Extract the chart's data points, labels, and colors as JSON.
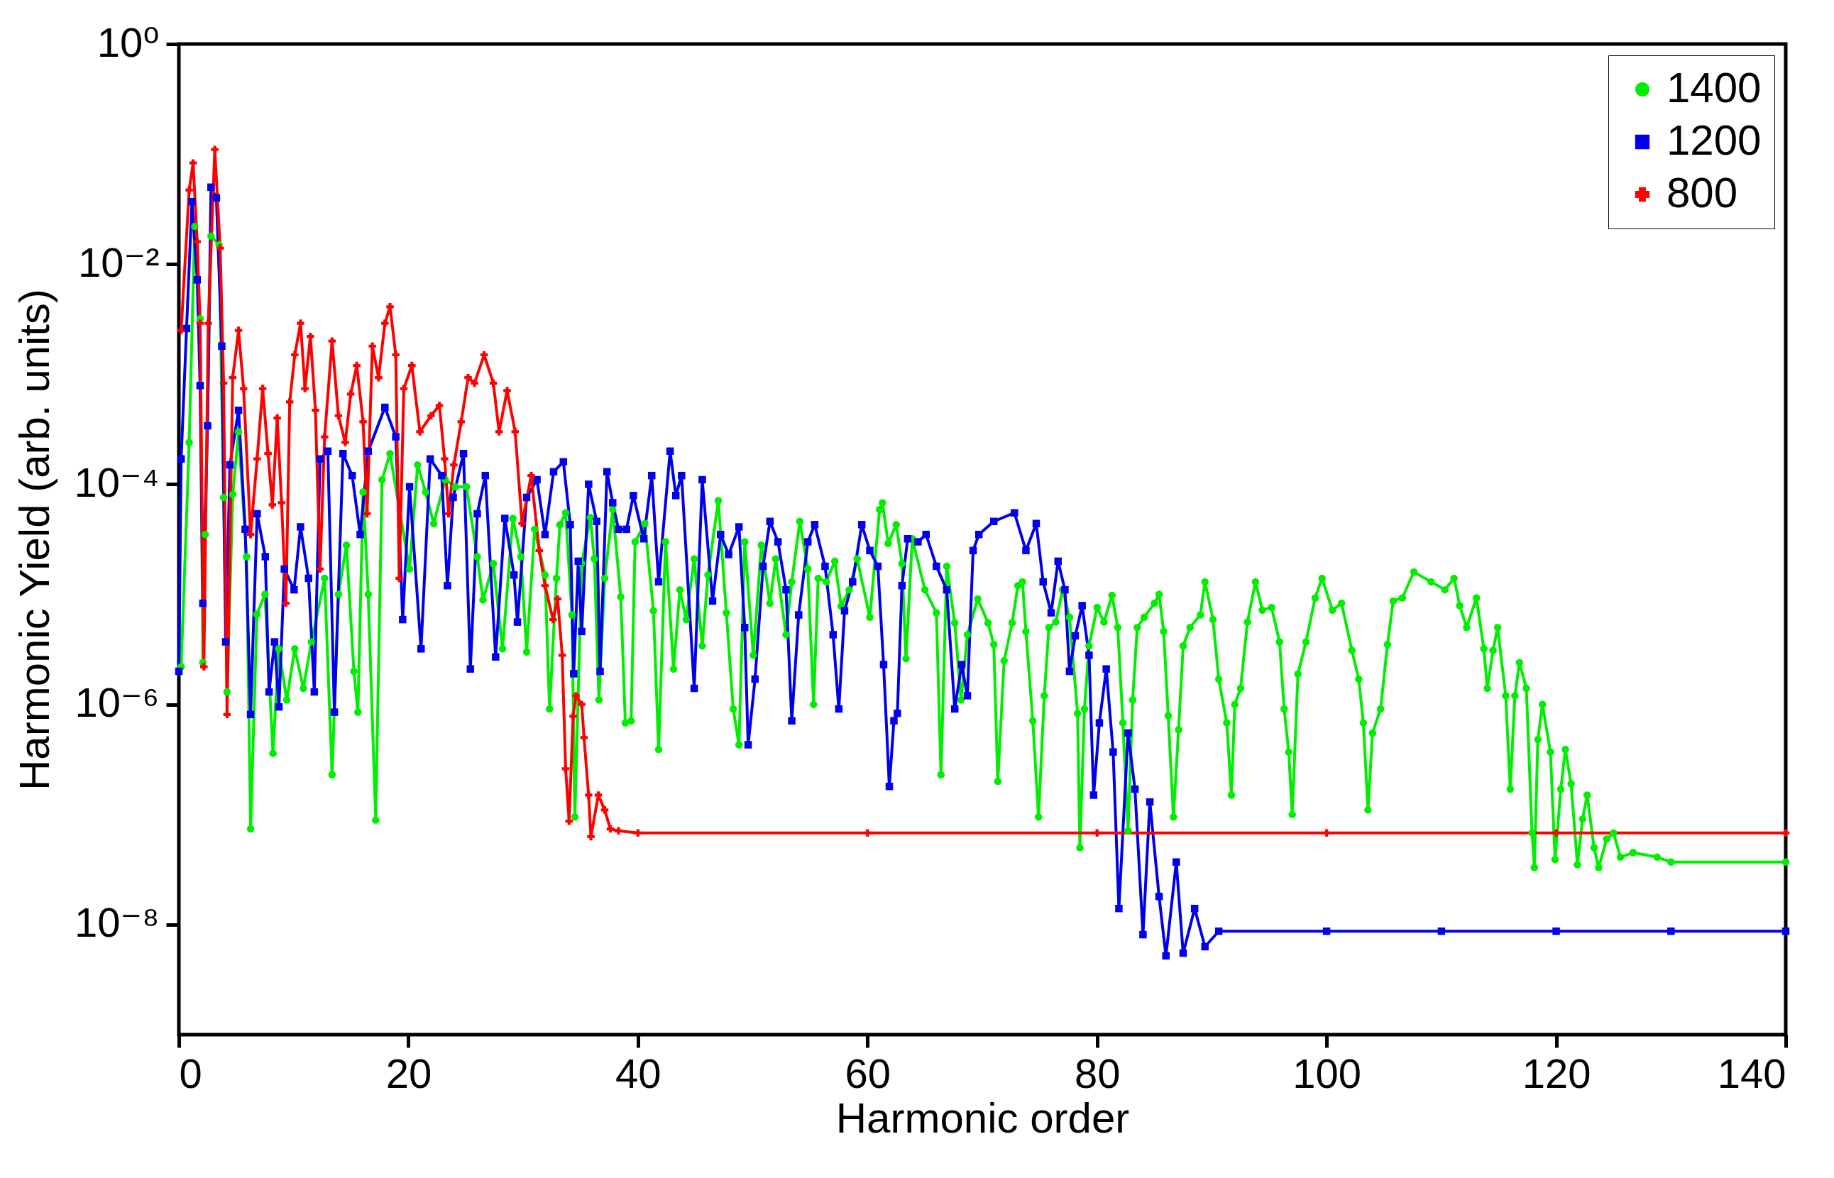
{
  "chart_data": {
    "type": "line",
    "xlabel": "Harmonic order",
    "ylabel": "Harmonic Yield (arb. units)",
    "xlim": [
      0,
      140
    ],
    "xticks": [
      0,
      20,
      40,
      60,
      80,
      100,
      120,
      140
    ],
    "ylim": [
      1e-09,
      1
    ],
    "yticks": [
      {
        "value": 1e-08,
        "label": "10⁻⁸"
      },
      {
        "value": 1e-06,
        "label": "10⁻⁶"
      },
      {
        "value": 0.0001,
        "label": "10⁻⁴"
      },
      {
        "value": 0.01,
        "label": "10⁻²"
      },
      {
        "value": 1,
        "label": "10⁰"
      }
    ],
    "log": "y",
    "grid": false,
    "legend": "top right",
    "line_style": "solid",
    "series": [
      {
        "name": "1400",
        "color": "#00ee00",
        "marker": "circle",
        "x": [
          0,
          0.2,
          0.9,
          1.38,
          1.85,
          2.09,
          2.3,
          2.8,
          3.5,
          3.9,
          4.2,
          4.7,
          5.2,
          5.9,
          6.25,
          6.8,
          7.5,
          8.2,
          8.7,
          9.4,
          10.1,
          10.85,
          11.55,
          12.7,
          13.35,
          13.9,
          14.6,
          15.25,
          15.6,
          16.05,
          16.5,
          17.15,
          17.7,
          18.4,
          20.1,
          20.8,
          21.5,
          22.2,
          23.2,
          24.1,
          25.05,
          26.0,
          26.5,
          27.4,
          28.2,
          29.1,
          29.8,
          30.3,
          31.0,
          31.9,
          32.3,
          32.9,
          33.2,
          33.7,
          34.25,
          34.5,
          35.1,
          35.85,
          36.2,
          36.6,
          37.1,
          37.8,
          38.5,
          38.9,
          39.4,
          39.75,
          40.6,
          41.35,
          41.8,
          42.4,
          43.1,
          43.65,
          44.2,
          44.9,
          45.6,
          46.1,
          47.0,
          47.7,
          48.3,
          48.8,
          49.3,
          50.05,
          50.75,
          51.5,
          52.0,
          52.9,
          53.4,
          54.1,
          54.8,
          55.3,
          55.7,
          56.4,
          57.15,
          57.7,
          58.4,
          59.1,
          60.2,
          61.05,
          61.3,
          61.8,
          62.5,
          63.0,
          63.35,
          63.9,
          65.0,
          66.0,
          66.4,
          66.9,
          67.6,
          68.15,
          68.7,
          69.6,
          70.5,
          71.0,
          71.35,
          71.9,
          72.6,
          73.1,
          73.5,
          73.8,
          74.4,
          74.9,
          75.4,
          75.8,
          76.4,
          77.0,
          77.6,
          78.3,
          78.5,
          78.9,
          79.3,
          80.0,
          80.6,
          81.3,
          81.8,
          82.25,
          82.7,
          83.1,
          83.5,
          84.1,
          85.0,
          85.4,
          85.8,
          86.2,
          86.65,
          87.1,
          87.5,
          88.1,
          89.0,
          89.4,
          90.1,
          90.6,
          91.3,
          91.7,
          92.0,
          92.5,
          93.1,
          93.8,
          94.4,
          95.2,
          95.9,
          96.3,
          96.7,
          97.0,
          97.5,
          98.2,
          99.0,
          99.6,
          100.5,
          101.3,
          102.2,
          102.8,
          103.2,
          103.6,
          104.0,
          104.7,
          105.3,
          105.8,
          106.6,
          107.6,
          109.1,
          110.3,
          111.1,
          111.6,
          112.2,
          113.05,
          113.7,
          114.0,
          114.5,
          114.9,
          115.6,
          116.0,
          116.4,
          116.8,
          117.4,
          117.9,
          118.1,
          118.4,
          118.8,
          119.5,
          119.9,
          120.4,
          120.8,
          121.3,
          121.85,
          122.3,
          122.7,
          123.3,
          123.7,
          124.4,
          125.0,
          125.6,
          126.7,
          128.8,
          130,
          140
        ],
        "values": [
          2e-06,
          2.2e-06,
          0.00024,
          0.022,
          0.0032,
          2.4e-06,
          3.5e-05,
          0.018,
          0.015,
          7.6e-05,
          1.3e-06,
          8.1e-05,
          0.0003,
          2.2e-05,
          7.4e-08,
          6.6e-06,
          1e-05,
          3.6e-07,
          3.2e-06,
          1.1e-06,
          3.2e-06,
          1.4e-06,
          3.7e-06,
          1.4e-05,
          2.3e-07,
          1e-05,
          2.8e-05,
          2e-06,
          8.5e-07,
          8.5e-05,
          1e-05,
          8.9e-08,
          0.00011,
          0.00019,
          1.7e-05,
          0.00015,
          8.5e-05,
          4.4e-05,
          0.00011,
          9.5e-05,
          9.5e-05,
          2.2e-05,
          8.9e-06,
          1.9e-05,
          3.2e-06,
          4.9e-05,
          2.2e-05,
          3e-06,
          3.9e-05,
          1.5e-05,
          9.1e-07,
          1.4e-05,
          4.3e-05,
          5.5e-05,
          6.5e-06,
          9.5e-08,
          1.9e-05,
          5e-05,
          2.1e-05,
          1.1e-06,
          1.4e-05,
          5.9e-05,
          9.5e-06,
          6.8e-07,
          7.1e-07,
          3e-05,
          4.4e-05,
          7.1e-06,
          3.9e-07,
          3e-05,
          2.1e-06,
          1.1e-05,
          5.9e-06,
          2.1e-05,
          3.4e-06,
          1.5e-05,
          7.1e-05,
          6.8e-06,
          9.1e-07,
          4.3e-07,
          3e-05,
          2.8e-06,
          2.8e-05,
          8.3e-06,
          2.1e-05,
          4.3e-06,
          1.3e-05,
          4.6e-05,
          1.7e-05,
          1e-06,
          1.4e-05,
          1.3e-05,
          2e-05,
          7.8e-06,
          1.1e-05,
          2.1e-05,
          6.2e-06,
          5.9e-05,
          6.8e-05,
          2.9e-05,
          4.3e-05,
          1.9e-05,
          2.6e-06,
          3.2e-05,
          1.1e-05,
          6.8e-06,
          2.3e-07,
          1.8e-05,
          5.5e-06,
          1.1e-06,
          4.3e-06,
          9.1e-06,
          5.5e-06,
          3.5e-06,
          2e-07,
          2.5e-06,
          5.5e-06,
          1.2e-05,
          1.3e-05,
          4.6e-06,
          7.1e-07,
          9.5e-08,
          1.2e-06,
          5e-06,
          5.6e-06,
          1.1e-05,
          6.2e-06,
          8.3e-07,
          5e-08,
          9.1e-07,
          3.4e-06,
          7.6e-06,
          5.6e-06,
          9.8e-06,
          5e-06,
          6.8e-07,
          7.1e-08,
          1.1e-06,
          5e-06,
          6.2e-06,
          8.3e-06,
          1e-05,
          4.6e-06,
          7.9e-07,
          9.5e-08,
          5.9e-07,
          3.4e-06,
          5e-06,
          6.5e-06,
          1.3e-05,
          5.9e-06,
          1.7e-06,
          6.8e-07,
          1.5e-07,
          1e-06,
          1.4e-06,
          5.6e-06,
          1.3e-05,
          7.2e-06,
          7.6e-06,
          3.7e-06,
          9.1e-07,
          3.7e-07,
          1e-07,
          1.9e-06,
          3.7e-06,
          9.3e-06,
          1.4e-05,
          7.2e-06,
          8.3e-06,
          3.1e-06,
          1.7e-06,
          6.8e-07,
          1.1e-07,
          5.5e-07,
          9.1e-07,
          3.5e-06,
          8.7e-06,
          9.3e-06,
          1.6e-05,
          1.3e-05,
          1.1e-05,
          1.4e-05,
          7.9e-06,
          5e-06,
          9.3e-06,
          3.2e-06,
          1.4e-06,
          3.1e-06,
          5e-06,
          1.2e-06,
          1.7e-07,
          1.2e-06,
          2.4e-06,
          1.4e-06,
          6.8e-08,
          3.3e-08,
          4.8e-07,
          1e-06,
          3.7e-07,
          3.9e-08,
          1.7e-07,
          3.9e-07,
          1.9e-07,
          3.5e-08,
          9.1e-08,
          1.5e-07,
          5e-08,
          3.3e-08,
          6e-08,
          6.8e-08,
          4.1e-08,
          4.5e-08,
          4.1e-08,
          3.7e-08,
          3.7e-08
        ]
      },
      {
        "name": "1200",
        "color": "#0000ee",
        "marker": "square",
        "x": [
          0,
          0.2,
          0.67,
          1.14,
          1.6,
          1.85,
          2.09,
          2.5,
          2.8,
          3.27,
          3.74,
          4.08,
          4.45,
          5.2,
          5.78,
          6.25,
          6.82,
          7.53,
          7.86,
          8.34,
          8.72,
          9.19,
          10.04,
          10.6,
          11.3,
          11.8,
          12.3,
          12.98,
          13.55,
          14.3,
          15.1,
          15.8,
          16.5,
          17.95,
          18.9,
          19.5,
          20.1,
          21.1,
          21.9,
          22.9,
          23.4,
          23.9,
          24.8,
          25.4,
          26.0,
          26.7,
          27.6,
          28.4,
          29.2,
          29.5,
          30.3,
          31.2,
          31.9,
          32.65,
          33.5,
          34.1,
          34.4,
          34.8,
          35.1,
          35.7,
          36.4,
          36.7,
          37.3,
          37.8,
          38.3,
          39.0,
          39.6,
          40.5,
          41.2,
          41.8,
          42.8,
          43.3,
          43.8,
          44.9,
          45.6,
          46.5,
          47.2,
          47.9,
          48.8,
          49.3,
          49.6,
          50.2,
          50.9,
          51.5,
          52.2,
          52.9,
          53.4,
          54.0,
          54.8,
          55.4,
          56.3,
          57.0,
          57.5,
          58.0,
          58.7,
          59.5,
          60.2,
          60.9,
          61.4,
          61.9,
          62.3,
          62.6,
          63.0,
          63.5,
          64.4,
          65.1,
          66.0,
          66.9,
          67.6,
          68.2,
          68.7,
          69.2,
          69.7,
          71.0,
          72.8,
          73.8,
          74.7,
          75.3,
          76.0,
          76.6,
          77.2,
          77.6,
          78.1,
          78.7,
          79.3,
          79.7,
          80.2,
          80.8,
          81.4,
          81.9,
          82.7,
          83.3,
          84.0,
          84.6,
          85.4,
          86.0,
          86.9,
          87.5,
          88.5,
          89.4,
          90.6,
          100,
          110,
          120,
          130,
          140
        ],
        "values": [
          2e-06,
          0.00017,
          0.0026,
          0.037,
          0.0072,
          0.00079,
          8.3e-06,
          0.00034,
          0.05,
          0.04,
          0.0018,
          3.7e-06,
          0.00015,
          0.00047,
          3.9e-05,
          8.1e-07,
          5.4e-05,
          2.2e-05,
          1.3e-06,
          3.7e-06,
          9.5e-07,
          1.7e-05,
          1.1e-05,
          4.1e-05,
          1.4e-05,
          1.3e-06,
          0.00017,
          0.0002,
          8.5e-07,
          0.00019,
          0.00012,
          3.5e-05,
          0.0002,
          0.0005,
          0.00027,
          5.9e-06,
          9.5e-05,
          3.2e-06,
          0.00017,
          0.00012,
          1.2e-05,
          7.6e-05,
          0.00019,
          2.1e-06,
          5.4e-05,
          0.00012,
          2.7e-06,
          4.9e-05,
          1.5e-05,
          5.6e-06,
          7.6e-05,
          0.00011,
          3.5e-05,
          0.00013,
          0.00016,
          4.3e-05,
          1.9e-06,
          2e-05,
          4.6e-06,
          0.0001,
          4.6e-05,
          2e-06,
          0.00013,
          6.8e-05,
          3.9e-05,
          3.9e-05,
          7.9e-05,
          3.2e-05,
          0.00012,
          1.3e-05,
          0.0002,
          7.9e-05,
          0.00012,
          1.4e-06,
          0.00011,
          8.7e-06,
          3.5e-05,
          2.3e-05,
          4.1e-05,
          5e-06,
          4.3e-07,
          1.7e-06,
          1.8e-05,
          4.6e-05,
          3e-05,
          1.1e-05,
          7.1e-07,
          6.5e-06,
          3e-05,
          4.3e-05,
          1.8e-05,
          4.3e-06,
          9.1e-07,
          7.1e-06,
          1.3e-05,
          4.3e-05,
          2.5e-05,
          1.8e-05,
          2.3e-06,
          1.8e-07,
          7.1e-07,
          8.3e-07,
          1.2e-05,
          3.2e-05,
          3e-05,
          3.5e-05,
          1.8e-05,
          1.1e-05,
          9.1e-07,
          2.3e-06,
          1.2e-06,
          2.5e-05,
          3.5e-05,
          4.6e-05,
          5.5e-05,
          2.5e-05,
          4.4e-05,
          1.3e-05,
          6.8e-06,
          2e-05,
          1.1e-05,
          2e-06,
          4.2e-06,
          7.9e-06,
          2.8e-06,
          1.5e-07,
          6.8e-07,
          2.1e-06,
          3.7e-07,
          1.4e-08,
          5.5e-07,
          1.7e-07,
          8.1e-09,
          1.3e-07,
          1.8e-08,
          5.2e-09,
          3.7e-08,
          5.5e-09,
          1.4e-08,
          6.3e-09,
          8.7e-09,
          8.7e-09,
          8.7e-09,
          8.7e-09,
          8.7e-09,
          8.7e-09
        ]
      },
      {
        "name": "800",
        "color": "#ff0000",
        "marker": "cross",
        "x": [
          0.2,
          0.9,
          1.24,
          1.6,
          1.85,
          2.18,
          2.56,
          3.13,
          3.6,
          3.9,
          4.2,
          4.69,
          5.2,
          5.64,
          6.25,
          6.82,
          7.3,
          7.77,
          8.15,
          8.57,
          8.95,
          9.33,
          9.66,
          10.1,
          10.6,
          10.99,
          11.46,
          11.9,
          12.3,
          12.7,
          13.35,
          13.9,
          14.5,
          14.97,
          15.5,
          16.05,
          16.4,
          16.86,
          17.4,
          17.95,
          18.4,
          18.9,
          19.2,
          19.6,
          20.3,
          21.0,
          21.97,
          22.7,
          23.15,
          23.5,
          23.96,
          24.6,
          25.2,
          25.76,
          26.6,
          27.4,
          27.9,
          28.6,
          29.3,
          29.9,
          30.7,
          31.4,
          31.9,
          32.6,
          33.0,
          33.4,
          33.7,
          34.0,
          34.35,
          34.6,
          35.1,
          35.3,
          35.7,
          35.9,
          36.55,
          37.1,
          37.6,
          38.3,
          40,
          60,
          80,
          100,
          120,
          140
        ],
        "values": [
          0.0025,
          0.047,
          0.083,
          0.016,
          0.0029,
          2.2e-06,
          0.0029,
          0.11,
          0.014,
          0.00083,
          8.1e-07,
          0.00093,
          0.0025,
          0.00074,
          3.5e-05,
          0.00017,
          0.00074,
          0.00019,
          6.5e-05,
          0.0004,
          6.8e-05,
          8.3e-06,
          0.00056,
          0.0015,
          0.0029,
          0.00074,
          0.0022,
          0.00047,
          1.7e-05,
          0.00027,
          0.002,
          0.00042,
          0.00024,
          0.00066,
          0.0012,
          0.00037,
          5.4e-05,
          0.0018,
          0.00093,
          0.0029,
          0.0041,
          0.0015,
          1.4e-05,
          0.00074,
          0.0012,
          0.0003,
          0.00042,
          0.00052,
          0.00017,
          5.4e-05,
          0.00015,
          0.00037,
          0.00093,
          0.00083,
          0.0015,
          0.00083,
          0.0003,
          0.00071,
          0.0003,
          4.4e-05,
          0.00012,
          2.5e-05,
          1.2e-05,
          5.9e-06,
          9.1e-06,
          2.8e-06,
          2.6e-07,
          8.7e-08,
          7.8e-07,
          1.2e-06,
          1e-06,
          5e-07,
          1.5e-07,
          6.3e-08,
          1.5e-07,
          1.1e-07,
          7.4e-08,
          7.1e-08,
          6.8e-08,
          6.8e-08,
          6.8e-08,
          6.8e-08,
          6.8e-08,
          6.8e-08
        ]
      }
    ]
  }
}
